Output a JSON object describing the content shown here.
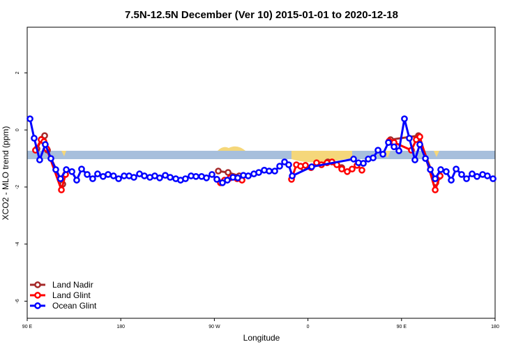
{
  "chart_data": {
    "type": "line",
    "title": "7.5N-12.5N December (Ver 10)   2015-01-01 to 2020-12-18",
    "xlabel": "Longitude",
    "ylabel": "XCO2 - MLO trend (ppm)",
    "xlim": [
      90,
      540
    ],
    "xticks": [
      {
        "value": 90,
        "label": "90 E"
      },
      {
        "value": 180,
        "label": "180"
      },
      {
        "value": 270,
        "label": "90 W"
      },
      {
        "value": 360,
        "label": "0"
      },
      {
        "value": 450,
        "label": "90 E"
      },
      {
        "value": 540,
        "label": "180"
      }
    ],
    "ylim": [
      -6.6,
      3.6
    ],
    "yticks": [
      -6,
      -4,
      -2,
      0,
      2
    ],
    "legend": "bottom-left",
    "series": [
      {
        "name": "Land Nadir",
        "color": "#a52a2a",
        "x": [
          99.4,
          104.1,
          106.8,
          109.5,
          124.2,
          null,
          273.8,
          283.2,
          293.9,
          null,
          355.6,
          379.1,
          392.5,
          null,
          439.4,
          466.3,
          483.0,
          486.4
        ],
        "values": [
          -0.66,
          -0.32,
          -0.2,
          -0.71,
          -1.9,
          null,
          -1.44,
          -1.49,
          -1.61,
          null,
          -1.32,
          -1.12,
          -1.32,
          null,
          -0.34,
          -0.2,
          -1.85,
          -1.63
        ]
      },
      {
        "name": "Land Glint",
        "color": "#ff0000",
        "x": [
          98.0,
          103.4,
          106.1,
          108.8,
          122.9,
          126.9,
          null,
          275.8,
          279.8,
          285.2,
          291.9,
          296.6,
          null,
          344.2,
          348.9,
          352.9,
          357.6,
          363.0,
          368.3,
          373.0,
          378.4,
          383.1,
          387.8,
          392.5,
          397.8,
          402.5,
          407.2,
          411.9,
          null,
          438.1,
          442.8,
          459.5,
          464.2,
          467.6,
          482.4,
          487.1
        ],
        "values": [
          -0.71,
          -0.34,
          -0.41,
          -0.66,
          -2.1,
          -1.56,
          null,
          -1.85,
          -1.76,
          -1.68,
          -1.71,
          -1.76,
          null,
          -1.73,
          -1.22,
          -1.27,
          -1.24,
          -1.32,
          -1.15,
          -1.22,
          -1.15,
          -1.12,
          -1.22,
          -1.37,
          -1.46,
          -1.37,
          -1.24,
          -1.41,
          null,
          -0.39,
          -0.44,
          -0.71,
          -0.34,
          -0.24,
          -2.1,
          -1.61
        ]
      },
      {
        "name": "Ocean Glint",
        "color": "#0000ff",
        "x": [
          92.7,
          96.7,
          102.0,
          107.4,
          112.8,
          117.5,
          122.0,
          127.6,
          133.0,
          137.6,
          142.3,
          147.7,
          153.0,
          157.7,
          163.0,
          167.8,
          173.0,
          177.9,
          183.2,
          188.0,
          192.6,
          198.0,
          202.7,
          208.0,
          212.7,
          217.4,
          222.8,
          227.5,
          232.9,
          237.5,
          242.2,
          247.6,
          252.3,
          257.7,
          262.4,
          267.7,
          272.4,
          277.8,
          282.5,
          287.9,
          292.5,
          297.9,
          302.6,
          308.0,
          312.7,
          318.0,
          322.7,
          328.1,
          332.8,
          337.5,
          341.5,
          344.9,
          363.6,
          403.9,
          408.6,
          413.3,
          418.0,
          422.7,
          427.4,
          432.1,
          437.4,
          442.8,
          447.5,
          452.8,
          457.5,
          462.9,
          467.6,
          473.0,
          477.7,
          482.4,
          487.7,
          493.0,
          497.8,
          502.5,
          507.8,
          512.5,
          517.9,
          522.6,
          528.0,
          532.6,
          538.0
        ],
        "values": [
          0.39,
          -0.29,
          -1.05,
          -0.51,
          -1.0,
          -1.39,
          -1.71,
          -1.39,
          -1.46,
          -1.76,
          -1.37,
          -1.56,
          -1.71,
          -1.54,
          -1.63,
          -1.56,
          -1.61,
          -1.71,
          -1.61,
          -1.61,
          -1.66,
          -1.54,
          -1.61,
          -1.66,
          -1.61,
          -1.68,
          -1.59,
          -1.66,
          -1.71,
          -1.76,
          -1.71,
          -1.61,
          -1.63,
          -1.63,
          -1.68,
          -1.56,
          -1.73,
          -1.85,
          -1.76,
          -1.66,
          -1.68,
          -1.59,
          -1.61,
          -1.54,
          -1.49,
          -1.41,
          -1.44,
          -1.44,
          -1.27,
          -1.12,
          -1.22,
          -1.61,
          -1.29,
          -1.02,
          -1.15,
          -1.17,
          -1.02,
          -0.98,
          -0.71,
          -0.85,
          -0.44,
          -0.59,
          -0.73,
          0.39,
          -0.29,
          -1.05,
          -0.51,
          -1.0,
          -1.39,
          -1.71,
          -1.39,
          -1.46,
          -1.76,
          -1.37,
          -1.56,
          -1.71,
          -1.54,
          -1.63,
          -1.56,
          -1.61,
          -1.71
        ]
      }
    ]
  }
}
